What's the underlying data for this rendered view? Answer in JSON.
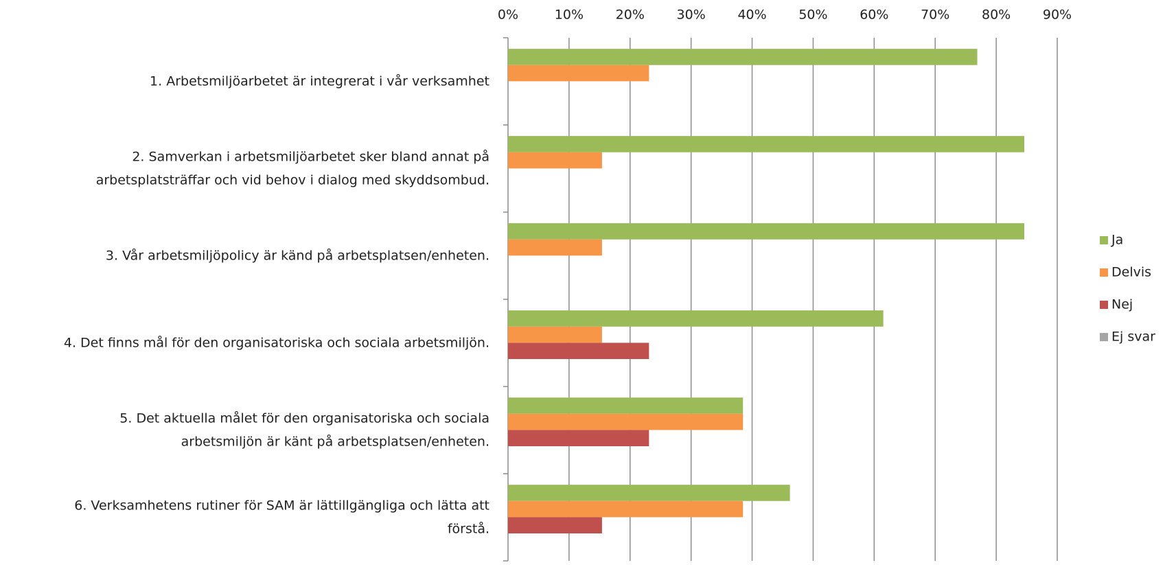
{
  "chart_data": {
    "type": "hbar",
    "categories": [
      [
        "1. Arbetsmiljöarbetet är integrerat i vår verksamhet"
      ],
      [
        "2. Samverkan i arbetsmiljöarbetet sker bland annat på",
        "arbetsplatsträffar och vid behov i dialog med skyddsombud."
      ],
      [
        "3. Vår arbetsmiljöpolicy är känd på arbetsplatsen/enheten."
      ],
      [
        "4. Det finns mål för den organisatoriska och sociala arbetsmiljön."
      ],
      [
        "5. Det aktuella målet för den organisatoriska och sociala",
        "arbetsmiljön är känt på arbetsplatsen/enheten."
      ],
      [
        "6. Verksamhetens rutiner för SAM är lättillgängliga och lätta att",
        "förstå."
      ]
    ],
    "series": [
      {
        "name": "Ja",
        "color": "#9bbb59",
        "values": [
          76.9,
          84.6,
          84.6,
          61.5,
          38.5,
          46.2
        ]
      },
      {
        "name": "Delvis",
        "color": "#f79646",
        "values": [
          23.1,
          15.4,
          15.4,
          15.4,
          38.5,
          38.5
        ]
      },
      {
        "name": "Nej",
        "color": "#c0504d",
        "values": [
          0,
          0,
          0,
          23.1,
          23.1,
          15.4
        ]
      },
      {
        "name": "Ej svar",
        "color": "#a5a5a5",
        "values": [
          0,
          0,
          0,
          0,
          0,
          0
        ]
      }
    ],
    "xlim": [
      0,
      90
    ],
    "xticks": [
      {
        "value": 0,
        "label": "0%"
      },
      {
        "value": 10,
        "label": "10%"
      },
      {
        "value": 20,
        "label": "20%"
      },
      {
        "value": 30,
        "label": "30%"
      },
      {
        "value": 40,
        "label": "40%"
      },
      {
        "value": 50,
        "label": "50%"
      },
      {
        "value": 60,
        "label": "60%"
      },
      {
        "value": 70,
        "label": "70%"
      },
      {
        "value": 80,
        "label": "80%"
      },
      {
        "value": 90,
        "label": "90%"
      }
    ],
    "grid": true,
    "legend": "right"
  }
}
